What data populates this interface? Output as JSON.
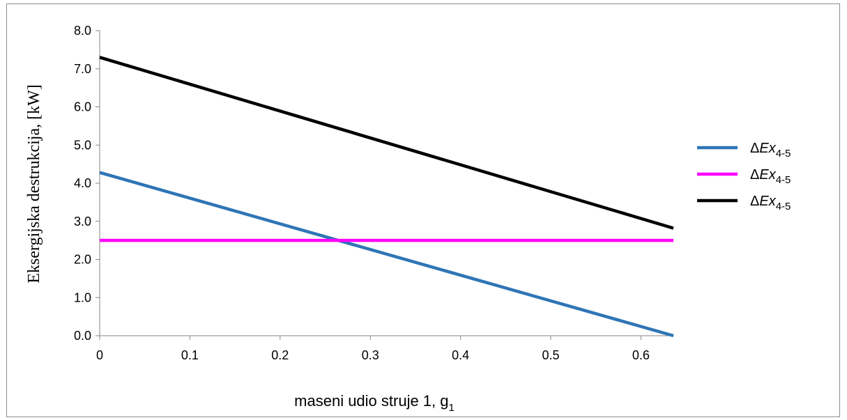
{
  "chart_data": {
    "type": "line",
    "title": "",
    "xlabel": "maseni udio struje 1, g",
    "xlabel_sub": "1",
    "ylabel": "Eksergijska destrukcija, [kW]",
    "xlim": [
      0,
      0.636
    ],
    "ylim": [
      0,
      8
    ],
    "x_ticks": [
      "0",
      "0.1",
      "0.2",
      "0.3",
      "0.4",
      "0.5",
      "0.6"
    ],
    "y_ticks": [
      "0.0",
      "1.0",
      "2.0",
      "3.0",
      "4.0",
      "5.0",
      "6.0",
      "7.0",
      "8.0"
    ],
    "grid": false,
    "legend_position": "right",
    "series": [
      {
        "name": "ΔEx",
        "subscript": "4-5",
        "color": "#2e75b6",
        "x": [
          0,
          0.636
        ],
        "values": [
          4.28,
          0.0
        ]
      },
      {
        "name": "ΔEx",
        "subscript": "4-5",
        "color": "#ff00ff",
        "x": [
          0,
          0.636
        ],
        "values": [
          2.5,
          2.5
        ]
      },
      {
        "name": "ΔEx",
        "subscript": "4-5",
        "color": "#000000",
        "x": [
          0,
          0.636
        ],
        "values": [
          7.3,
          2.82
        ]
      }
    ]
  }
}
